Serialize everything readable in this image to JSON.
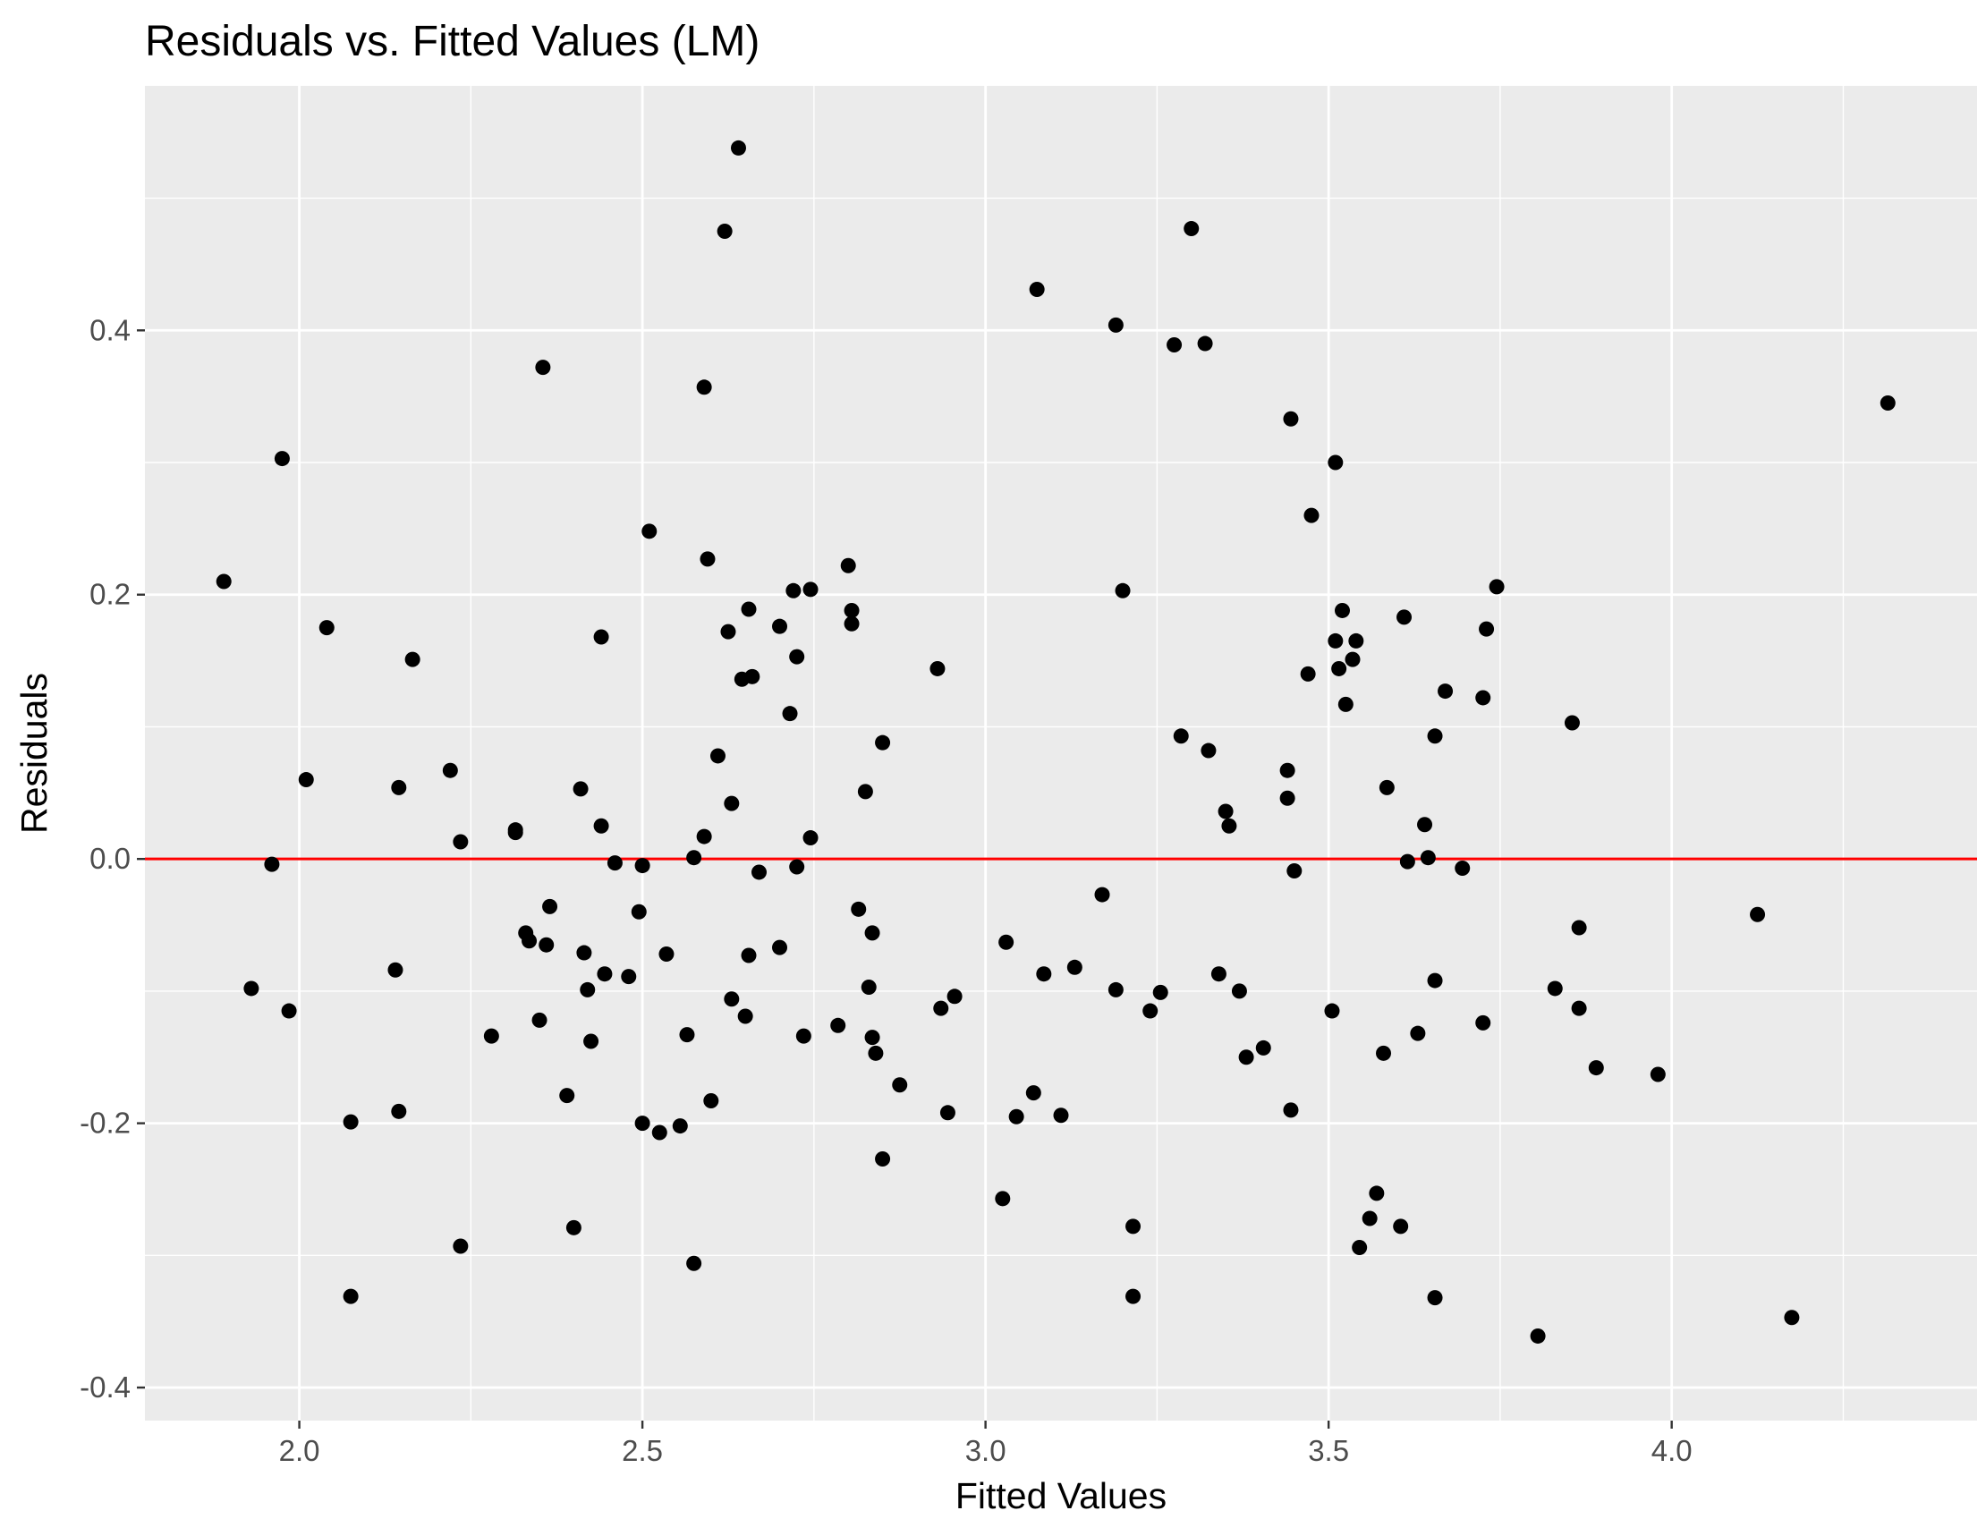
{
  "chart_data": {
    "type": "scatter",
    "title": "Residuals vs. Fitted Values (LM)",
    "xlabel": "Fitted Values",
    "ylabel": "Residuals",
    "xlim": [
      1.775,
      4.445
    ],
    "ylim": [
      -0.425,
      0.585
    ],
    "x_ticks": [
      2.0,
      2.5,
      3.0,
      3.5,
      4.0
    ],
    "x_tick_labels": [
      "2.0",
      "2.5",
      "3.0",
      "3.5",
      "4.0"
    ],
    "y_ticks": [
      -0.4,
      -0.2,
      0.0,
      0.2,
      0.4
    ],
    "y_tick_labels": [
      "-0.4",
      "-0.2",
      "0.0",
      "0.2",
      "0.4"
    ],
    "grid": true,
    "reference_line": {
      "y": 0.0,
      "color": "#ff0000"
    },
    "colors": {
      "panel": "#ebebeb",
      "grid": "#ffffff",
      "point": "#000000"
    },
    "points": [
      [
        1.89,
        0.21
      ],
      [
        1.93,
        -0.098
      ],
      [
        1.96,
        -0.004
      ],
      [
        1.975,
        0.303
      ],
      [
        1.985,
        -0.115
      ],
      [
        2.01,
        0.06
      ],
      [
        2.04,
        0.175
      ],
      [
        2.075,
        -0.199
      ],
      [
        2.075,
        -0.331
      ],
      [
        2.14,
        -0.084
      ],
      [
        2.145,
        0.054
      ],
      [
        2.145,
        -0.191
      ],
      [
        2.165,
        0.151
      ],
      [
        2.22,
        0.067
      ],
      [
        2.235,
        0.013
      ],
      [
        2.235,
        -0.293
      ],
      [
        2.28,
        -0.134
      ],
      [
        2.315,
        0.02
      ],
      [
        2.315,
        0.022
      ],
      [
        2.33,
        -0.056
      ],
      [
        2.335,
        -0.062
      ],
      [
        2.35,
        -0.122
      ],
      [
        2.355,
        0.372
      ],
      [
        2.36,
        -0.065
      ],
      [
        2.365,
        -0.036
      ],
      [
        2.39,
        -0.179
      ],
      [
        2.4,
        -0.279
      ],
      [
        2.41,
        0.053
      ],
      [
        2.415,
        -0.071
      ],
      [
        2.42,
        -0.099
      ],
      [
        2.425,
        -0.138
      ],
      [
        2.44,
        0.168
      ],
      [
        2.44,
        0.025
      ],
      [
        2.445,
        -0.087
      ],
      [
        2.46,
        -0.003
      ],
      [
        2.48,
        -0.089
      ],
      [
        2.495,
        -0.04
      ],
      [
        2.5,
        -0.005
      ],
      [
        2.5,
        -0.2
      ],
      [
        2.51,
        0.248
      ],
      [
        2.525,
        -0.207
      ],
      [
        2.535,
        -0.072
      ],
      [
        2.555,
        -0.202
      ],
      [
        2.565,
        -0.133
      ],
      [
        2.575,
        0.001
      ],
      [
        2.575,
        -0.306
      ],
      [
        2.59,
        0.017
      ],
      [
        2.59,
        0.357
      ],
      [
        2.595,
        0.227
      ],
      [
        2.6,
        -0.183
      ],
      [
        2.61,
        0.078
      ],
      [
        2.62,
        0.475
      ],
      [
        2.625,
        0.172
      ],
      [
        2.63,
        -0.106
      ],
      [
        2.63,
        0.042
      ],
      [
        2.64,
        0.538
      ],
      [
        2.645,
        0.136
      ],
      [
        2.65,
        -0.119
      ],
      [
        2.655,
        0.189
      ],
      [
        2.655,
        -0.073
      ],
      [
        2.66,
        0.138
      ],
      [
        2.67,
        -0.01
      ],
      [
        2.7,
        0.176
      ],
      [
        2.7,
        -0.067
      ],
      [
        2.715,
        0.11
      ],
      [
        2.72,
        0.203
      ],
      [
        2.725,
        -0.006
      ],
      [
        2.725,
        0.153
      ],
      [
        2.735,
        -0.134
      ],
      [
        2.745,
        0.204
      ],
      [
        2.745,
        0.016
      ],
      [
        2.785,
        -0.126
      ],
      [
        2.8,
        0.222
      ],
      [
        2.805,
        0.188
      ],
      [
        2.805,
        0.178
      ],
      [
        2.815,
        -0.038
      ],
      [
        2.825,
        0.051
      ],
      [
        2.83,
        -0.097
      ],
      [
        2.835,
        -0.135
      ],
      [
        2.835,
        -0.056
      ],
      [
        2.84,
        -0.147
      ],
      [
        2.85,
        0.088
      ],
      [
        2.85,
        -0.227
      ],
      [
        2.875,
        -0.171
      ],
      [
        2.93,
        0.144
      ],
      [
        2.935,
        -0.113
      ],
      [
        2.945,
        -0.192
      ],
      [
        2.955,
        -0.104
      ],
      [
        3.025,
        -0.257
      ],
      [
        3.03,
        -0.063
      ],
      [
        3.045,
        -0.195
      ],
      [
        3.07,
        -0.177
      ],
      [
        3.075,
        0.431
      ],
      [
        3.085,
        -0.087
      ],
      [
        3.11,
        -0.194
      ],
      [
        3.13,
        -0.082
      ],
      [
        3.17,
        -0.027
      ],
      [
        3.19,
        0.404
      ],
      [
        3.19,
        -0.099
      ],
      [
        3.2,
        0.203
      ],
      [
        3.215,
        -0.278
      ],
      [
        3.215,
        -0.331
      ],
      [
        3.24,
        -0.115
      ],
      [
        3.255,
        -0.101
      ],
      [
        3.275,
        0.389
      ],
      [
        3.285,
        0.093
      ],
      [
        3.3,
        0.477
      ],
      [
        3.32,
        0.39
      ],
      [
        3.325,
        0.082
      ],
      [
        3.34,
        -0.087
      ],
      [
        3.35,
        0.036
      ],
      [
        3.355,
        0.025
      ],
      [
        3.37,
        -0.1
      ],
      [
        3.38,
        -0.15
      ],
      [
        3.405,
        -0.143
      ],
      [
        3.44,
        0.067
      ],
      [
        3.44,
        0.046
      ],
      [
        3.445,
        0.333
      ],
      [
        3.445,
        -0.19
      ],
      [
        3.45,
        -0.009
      ],
      [
        3.47,
        0.14
      ],
      [
        3.475,
        0.26
      ],
      [
        3.505,
        -0.115
      ],
      [
        3.51,
        0.3
      ],
      [
        3.51,
        0.165
      ],
      [
        3.515,
        0.144
      ],
      [
        3.52,
        0.188
      ],
      [
        3.525,
        0.117
      ],
      [
        3.535,
        0.151
      ],
      [
        3.54,
        0.165
      ],
      [
        3.545,
        -0.294
      ],
      [
        3.56,
        -0.272
      ],
      [
        3.57,
        -0.253
      ],
      [
        3.58,
        -0.147
      ],
      [
        3.585,
        0.054
      ],
      [
        3.605,
        -0.278
      ],
      [
        3.61,
        0.183
      ],
      [
        3.615,
        -0.002
      ],
      [
        3.63,
        -0.132
      ],
      [
        3.64,
        0.026
      ],
      [
        3.645,
        0.001
      ],
      [
        3.655,
        -0.092
      ],
      [
        3.655,
        0.093
      ],
      [
        3.655,
        -0.332
      ],
      [
        3.67,
        0.127
      ],
      [
        3.695,
        -0.007
      ],
      [
        3.725,
        0.122
      ],
      [
        3.725,
        -0.124
      ],
      [
        3.73,
        0.174
      ],
      [
        3.745,
        0.206
      ],
      [
        3.805,
        -0.361
      ],
      [
        3.83,
        -0.098
      ],
      [
        3.855,
        0.103
      ],
      [
        3.865,
        -0.052
      ],
      [
        3.865,
        -0.113
      ],
      [
        3.89,
        -0.158
      ],
      [
        3.98,
        -0.163
      ],
      [
        4.125,
        -0.042
      ],
      [
        4.175,
        -0.347
      ],
      [
        4.315,
        0.345
      ]
    ]
  }
}
